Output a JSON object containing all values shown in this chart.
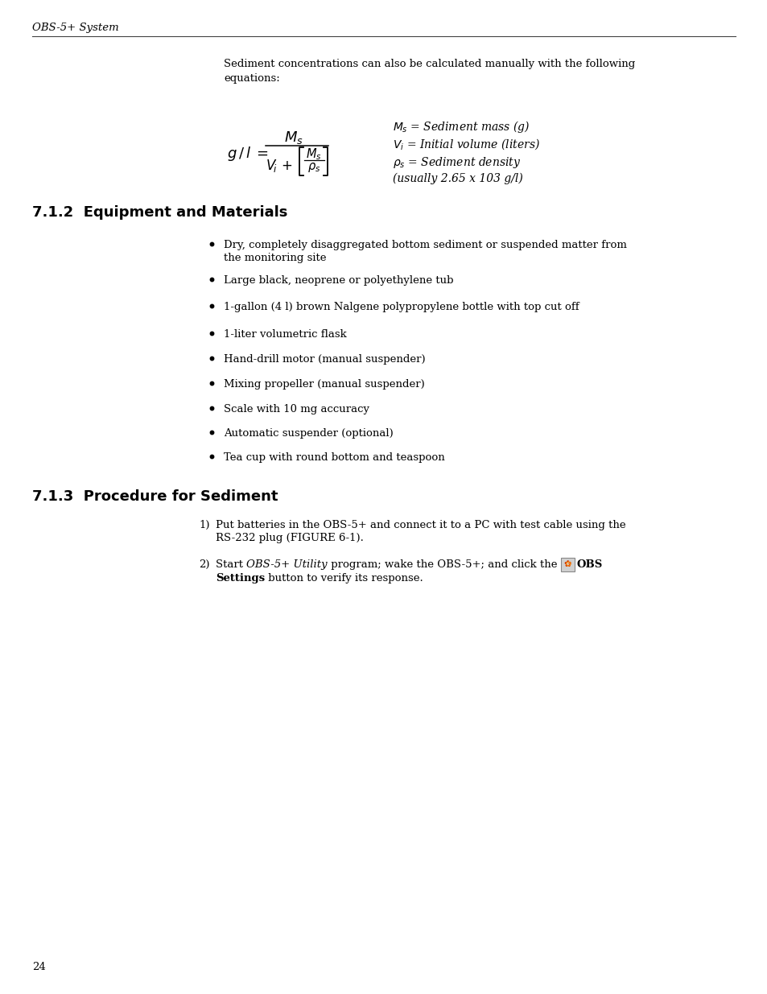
{
  "bg_color": "#ffffff",
  "text_color": "#000000",
  "header": "OBS-5+ System",
  "page_number": "24",
  "intro_line1": "Sediment concentrations can also be calculated manually with the following",
  "intro_line2": "equations:",
  "section712": "7.1.2  Equipment and Materials",
  "bullets": [
    [
      "Dry, completely disaggregated bottom sediment or suspended matter from",
      "the monitoring site"
    ],
    [
      "Large black, neoprene or polyethylene tub"
    ],
    [
      "1-gallon (4 l) brown Nalgene polypropylene bottle with top cut off"
    ],
    [
      "1-liter volumetric flask"
    ],
    [
      "Hand-drill motor (manual suspender)"
    ],
    [
      "Mixing propeller (manual suspender)"
    ],
    [
      "Scale with 10 mg accuracy"
    ],
    [
      "Automatic suspender (optional)"
    ],
    [
      "Tea cup with round bottom and teaspoon"
    ]
  ],
  "section713": "7.1.3  Procedure for Sediment",
  "proc1_line1": "Put batteries in the OBS-5+ and connect it to a PC with test cable using the",
  "proc1_line2": "RS-232 plug (FIGURE 6-1).",
  "proc2_pre": "Start ",
  "proc2_italic": "OBS-5+ Utility",
  "proc2_post": " program; wake the OBS-5+; and click the ",
  "proc2_bold": "OBS",
  "proc2_line2_bold": "Settings",
  "proc2_line2_post": " button to verify its response."
}
